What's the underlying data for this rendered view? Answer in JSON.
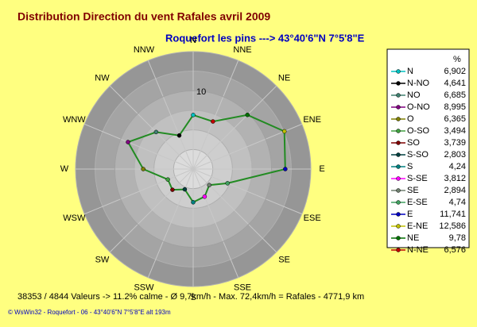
{
  "chart_data": {
    "type": "radar",
    "title": "Distribution Direction du vent Rafales  avril 2009",
    "subtitle": "Roquefort les pins    --->  43°40'6\"N 7°5'8\"E",
    "categories": [
      "N",
      "NNW",
      "NW",
      "WNW",
      "W",
      "WSW",
      "SW",
      "SSW",
      "S",
      "SSE",
      "SE",
      "ESE",
      "E",
      "ENE",
      "NE",
      "NNE"
    ],
    "direction": "counterclockwise",
    "legend_title": "%",
    "legend_names": [
      "N",
      "N-NO",
      "NO",
      "O-NO",
      "O",
      "O-SO",
      "SO",
      "S-SO",
      "S",
      "S-SE",
      "SE",
      "E-SE",
      "E",
      "E-NE",
      "NE",
      "N-NE"
    ],
    "values": [
      6.902,
      4.641,
      6.685,
      8.995,
      6.365,
      3.494,
      3.739,
      2.803,
      4.24,
      3.812,
      2.894,
      4.74,
      11.741,
      12.586,
      9.78,
      6.576
    ],
    "value_labels": [
      "6,902",
      "4,641",
      "6,685",
      "8,995",
      "6,365",
      "3,494",
      "3,739",
      "2,803",
      "4,24",
      "3,812",
      "2,894",
      "4,74",
      "11,741",
      "12,586",
      "9,78",
      "6,576"
    ],
    "point_colors": [
      "#00c0c0",
      "#000000",
      "#408070",
      "#800080",
      "#808000",
      "#40a040",
      "#800000",
      "#004040",
      "#008080",
      "#ff00ff",
      "#708070",
      "#40a060",
      "#0000c0",
      "#c0c000",
      "#007000",
      "#c00000"
    ],
    "line_color": "#228b22",
    "rlim": [
      0,
      15
    ],
    "rticks": [
      10
    ],
    "footer": "38353 / 4844 Valeurs  -> 11.2% calme   -  Ø 9,7km/h  -  Max. 72,4km/h = Rafales   -   4771,9 km",
    "credit": "© WsWin32  -  Roquefort - 06  -  43°40'6\"N 7°5'8\"E alt 193m"
  }
}
